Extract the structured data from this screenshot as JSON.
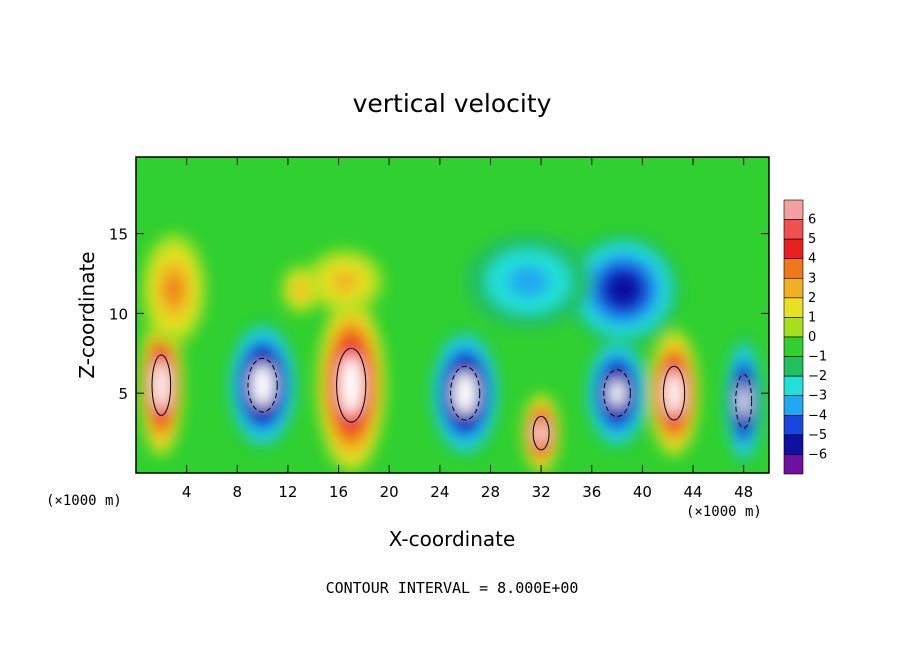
{
  "chart_data": {
    "type": "heatmap",
    "title": "vertical velocity",
    "xlabel": "X-coordinate",
    "ylabel": "Z-coordinate",
    "x_unit_label_left": "(×1000 m)",
    "x_unit_label_right": "(×1000 m)",
    "xlim": [
      0,
      50
    ],
    "ylim": [
      0,
      19.8
    ],
    "x_ticks": [
      4,
      8,
      12,
      16,
      20,
      24,
      28,
      32,
      36,
      40,
      44,
      48
    ],
    "y_ticks": [
      5,
      10,
      15
    ],
    "colorbar": {
      "levels": [
        6,
        5,
        4,
        3,
        2,
        1,
        0,
        -1,
        -2,
        -3,
        -4,
        -5,
        -6
      ],
      "colors": [
        "#f4a0a0",
        "#f05050",
        "#e82020",
        "#f07818",
        "#f0b020",
        "#e8e020",
        "#a8e020",
        "#30d030",
        "#20c060",
        "#20e0d8",
        "#20a8f0",
        "#1848e0",
        "#1010a0",
        "#7010a0"
      ]
    },
    "cells": [
      {
        "x": 2,
        "z": 5.5,
        "w": 3.5,
        "h": 9,
        "v": 8
      },
      {
        "x": 10,
        "z": 5.5,
        "w": 5.5,
        "h": 8,
        "v": -8
      },
      {
        "x": 17,
        "z": 5.5,
        "w": 5.5,
        "h": 11,
        "v": 8
      },
      {
        "x": 26,
        "z": 5.0,
        "w": 5.5,
        "h": 8,
        "v": -8
      },
      {
        "x": 32,
        "z": 2.5,
        "w": 3,
        "h": 5,
        "v": 7
      },
      {
        "x": 38,
        "z": 5.0,
        "w": 5,
        "h": 7,
        "v": -7
      },
      {
        "x": 42.5,
        "z": 5.0,
        "w": 4,
        "h": 8,
        "v": 8
      },
      {
        "x": 48,
        "z": 4.5,
        "w": 3,
        "h": 8,
        "v": -7
      },
      {
        "x": 38.5,
        "z": 11.5,
        "w": 9,
        "h": 7,
        "v": -5
      },
      {
        "x": 31,
        "z": 12.0,
        "w": 10,
        "h": 6,
        "v": -2
      },
      {
        "x": 3,
        "z": 11.5,
        "w": 5,
        "h": 7,
        "v": 3
      },
      {
        "x": 16.5,
        "z": 12.0,
        "w": 6,
        "h": 4,
        "v": 2
      },
      {
        "x": 13,
        "z": 11.5,
        "w": 3,
        "h": 3,
        "v": 1.5
      }
    ],
    "contour_interval_text": "CONTOUR INTERVAL = 8.000E+00"
  }
}
